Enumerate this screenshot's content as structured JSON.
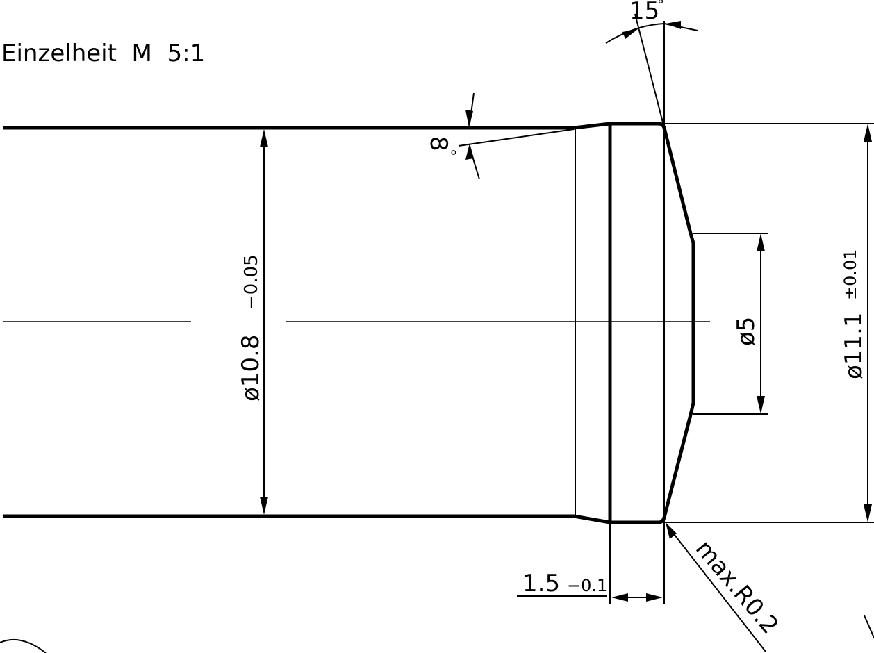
{
  "drawing": {
    "title": "Einzelheit  M  5:1",
    "dims": {
      "angle_top": "15",
      "angle_top_mark": "°",
      "angle_small": "8",
      "angle_small_mark": "°",
      "dia_left": "ø10.8",
      "dia_left_tol": "−0.05",
      "dia_inner": "ø5",
      "dia_right": "ø11.1",
      "dia_right_tol": "±0.01",
      "length": "1.5",
      "length_tol": "−0.1",
      "radius": "max.R0.2"
    }
  }
}
